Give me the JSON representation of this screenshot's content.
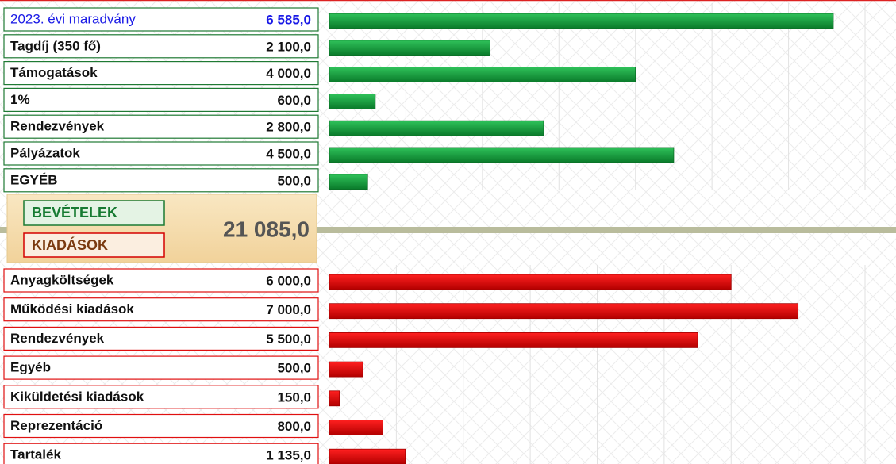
{
  "chart_data": [
    {
      "type": "bar",
      "orientation": "horizontal",
      "categories": [
        "2023. évi maradvány",
        "Tagdíj (350 fő)",
        "Támogatások",
        "1%",
        "Rendezvények",
        "Pályázatok",
        "EGYÉB"
      ],
      "values": [
        6585,
        2100,
        4000,
        600,
        2800,
        4500,
        500
      ],
      "value_labels": [
        "6 585,0",
        "2 100,0",
        "4 000,0",
        "600,0",
        "2 800,0",
        "4 500,0",
        "500,0"
      ],
      "color": "#13a03c",
      "xlim": [
        0,
        7000
      ],
      "xticks": [
        0,
        1000,
        2000,
        3000,
        4000,
        5000,
        6000,
        7000
      ],
      "grid": true
    },
    {
      "type": "bar",
      "orientation": "horizontal",
      "categories": [
        "Anyagköltségek",
        "Működési kiadások",
        "Rendezvények",
        "Egyéb",
        "Kiküldetési kiadások",
        "Reprezentáció",
        "Tartalék"
      ],
      "values": [
        6000,
        7000,
        5500,
        500,
        150,
        800,
        1135
      ],
      "value_labels": [
        "6 000,0",
        "7 000,0",
        "5 500,0",
        "500,0",
        "150,0",
        "800,0",
        "1 135,0"
      ],
      "color": "#e80000",
      "xlim": [
        0,
        8000
      ],
      "xticks": [
        0,
        1000,
        2000,
        3000,
        4000,
        5000,
        6000,
        7000,
        8000
      ],
      "grid": true
    }
  ],
  "summary": {
    "income_label": "BEVÉTELEK",
    "expense_label": "KIADÁSOK",
    "total": "21 085,0"
  }
}
